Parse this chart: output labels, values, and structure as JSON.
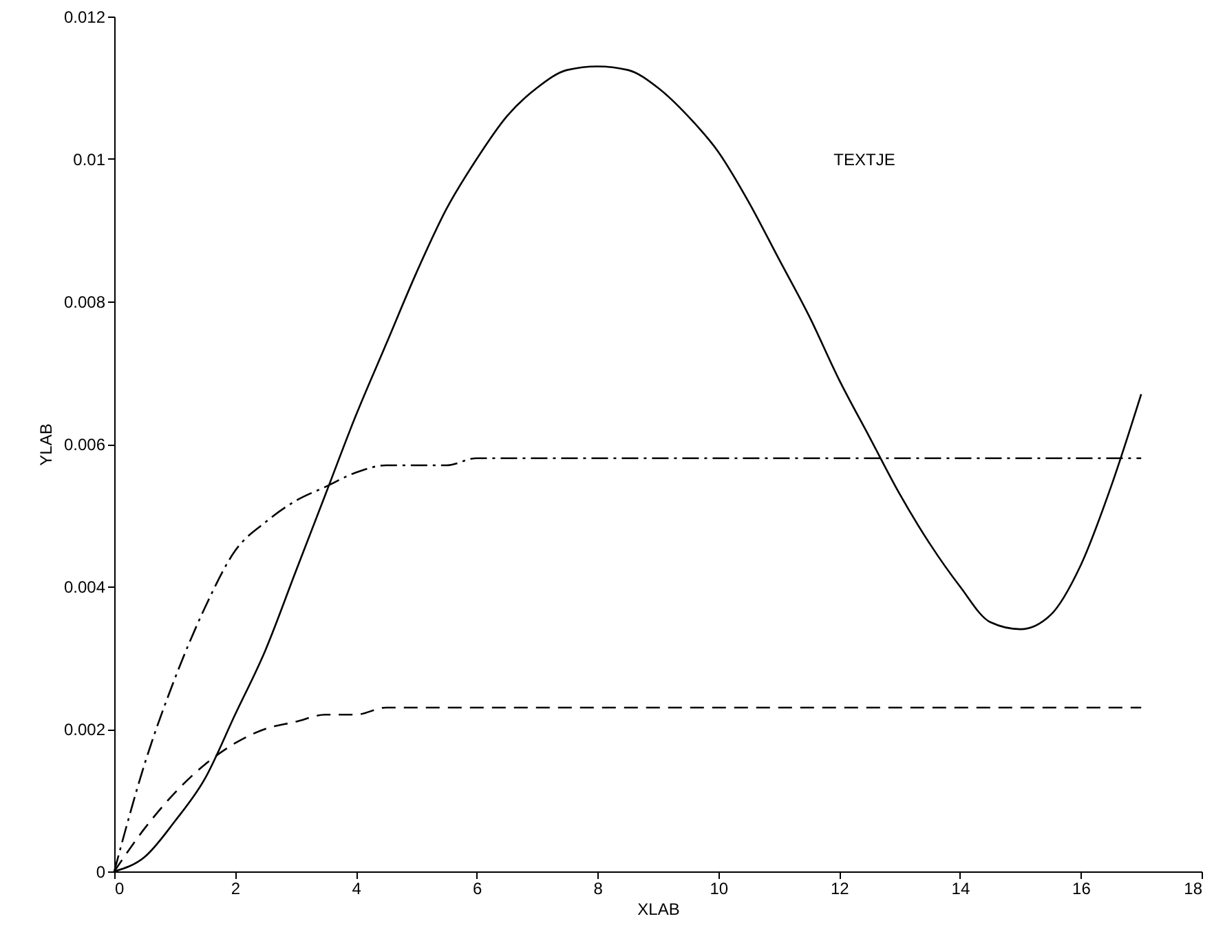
{
  "chart_data": {
    "type": "line",
    "xlabel": "XLAB",
    "ylabel": "YLAB",
    "annotations": [
      "TEXTJE"
    ],
    "x": [
      0,
      0.5,
      1,
      1.5,
      2,
      2.5,
      3,
      3.5,
      4,
      4.5,
      5,
      5.5,
      6,
      6.5,
      7,
      7.5,
      8,
      8.5,
      9,
      9.5,
      10,
      10.5,
      11,
      11.5,
      12,
      12.5,
      13,
      13.5,
      14,
      14.5,
      15,
      15.5,
      16,
      16.5,
      17
    ],
    "xlim": [
      0,
      18
    ],
    "xticks": [
      0,
      2,
      4,
      6,
      8,
      10,
      12,
      14,
      16,
      18
    ],
    "ylim": [
      0,
      0.012
    ],
    "yticks": [
      0,
      0.002,
      0.004,
      0.006,
      0.008,
      0.01,
      0.012
    ],
    "marker": "none",
    "series": [
      {
        "color": "#000000",
        "line_style": "solid",
        "values": [
          0,
          0.0002,
          0.0007,
          0.0013,
          0.0022,
          0.0031,
          0.0042,
          0.0053,
          0.0064,
          0.0074,
          0.0084,
          0.0093,
          0.01,
          0.0106,
          0.011,
          0.01125,
          0.0113,
          0.01125,
          0.011,
          0.0106,
          0.0101,
          0.0094,
          0.0086,
          0.0078,
          0.0069,
          0.0061,
          0.0053,
          0.0046,
          0.004,
          0.0035,
          0.0034,
          0.0036,
          0.0043,
          0.0054,
          0.0067
        ]
      },
      {
        "color": "#000000",
        "line_style": "dashdot",
        "values": [
          0,
          0.0015,
          0.0027,
          0.0037,
          0.0045,
          0.0049,
          0.0052,
          0.0054,
          0.0056,
          0.0057,
          0.0057,
          0.0057,
          0.0058,
          0.0058,
          0.0058,
          0.0058,
          0.0058,
          0.0058,
          0.0058,
          0.0058,
          0.0058,
          0.0058,
          0.0058,
          0.0058,
          0.0058,
          0.0058,
          0.0058,
          0.0058,
          0.0058,
          0.0058,
          0.0058,
          0.0058,
          0.0058,
          0.0058,
          0.0058
        ]
      },
      {
        "color": "#000000",
        "line_style": "dashed",
        "values": [
          0,
          0.0006,
          0.0011,
          0.0015,
          0.0018,
          0.002,
          0.0021,
          0.0022,
          0.0022,
          0.0023,
          0.0023,
          0.0023,
          0.0023,
          0.0023,
          0.0023,
          0.0023,
          0.0023,
          0.0023,
          0.0023,
          0.0023,
          0.0023,
          0.0023,
          0.0023,
          0.0023,
          0.0023,
          0.0023,
          0.0023,
          0.0023,
          0.0023,
          0.0023,
          0.0023,
          0.0023,
          0.0023,
          0.0023,
          0.0023
        ]
      }
    ]
  }
}
